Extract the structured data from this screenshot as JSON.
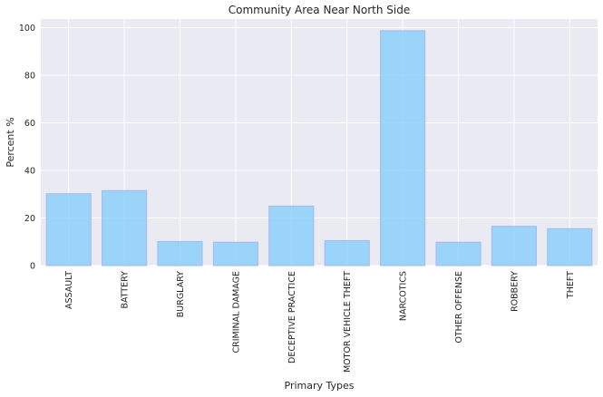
{
  "chart_data": {
    "type": "bar",
    "title": "Community Area Near North Side",
    "xlabel": "Primary Types",
    "ylabel": "Percent %",
    "categories": [
      "ASSAULT",
      "BATTERY",
      "BURGLARY",
      "CRIMINAL DAMAGE",
      "DECEPTIVE PRACTICE",
      "MOTOR VEHICLE THEFT",
      "NARCOTICS",
      "OTHER OFFENSE",
      "ROBBERY",
      "THEFT"
    ],
    "values": [
      30.2,
      31.5,
      10.1,
      9.8,
      25.0,
      10.5,
      98.7,
      9.8,
      16.5,
      15.5
    ],
    "ylim": [
      0,
      103.6
    ],
    "yticks": [
      0,
      20,
      40,
      60,
      80,
      100
    ],
    "grid": true,
    "bar_color": "#87cefa",
    "bar_edge_color": "#a6b8f0",
    "background_color": "#eaeaf2",
    "grid_color": "#ffffff"
  }
}
